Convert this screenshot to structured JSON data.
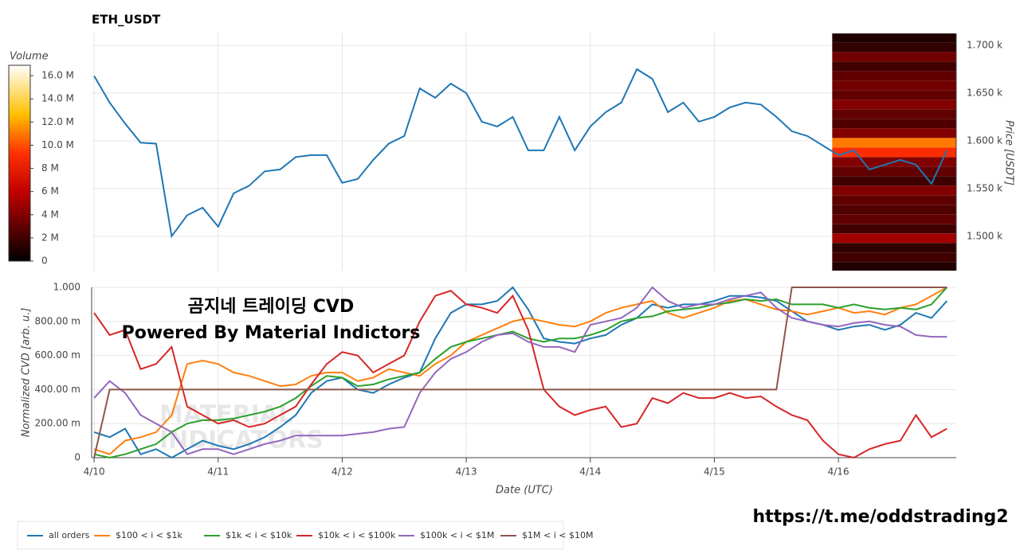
{
  "chart_data": [
    {
      "type": "line",
      "title": "ETH_USDT",
      "ylabel": "Price [USDT]",
      "xlim": [
        -0.02,
        6.95
      ],
      "ylim": [
        1464,
        1712.5
      ],
      "yticks": [
        {
          "value": 1500,
          "label": "1.500 k"
        },
        {
          "value": 1550,
          "label": "1.550 k"
        },
        {
          "value": 1600,
          "label": "1.600 k"
        },
        {
          "value": 1650,
          "label": "1.650 k"
        },
        {
          "value": 1700,
          "label": "1.700 k"
        }
      ],
      "grid": true,
      "x": [
        0,
        0.125,
        0.25,
        0.375,
        0.5,
        0.625,
        0.75,
        0.875,
        1,
        1.125,
        1.25,
        1.375,
        1.5,
        1.625,
        1.75,
        1.875,
        2,
        2.125,
        2.25,
        2.375,
        2.5,
        2.625,
        2.75,
        2.875,
        3,
        3.125,
        3.25,
        3.375,
        3.5,
        3.625,
        3.75,
        3.875,
        4,
        4.125,
        4.25,
        4.375,
        4.5,
        4.625,
        4.75,
        4.875,
        5,
        5.125,
        5.25,
        5.375,
        5.5,
        5.625,
        5.75,
        5.875,
        6,
        6.125,
        6.25,
        6.375,
        6.5,
        6.625,
        6.75,
        6.875
      ],
      "series": [
        {
          "name": "price",
          "color": "#1f77b4",
          "values": [
            1668,
            1640,
            1618,
            1598,
            1597,
            1500,
            1522,
            1530,
            1510,
            1545,
            1553,
            1568,
            1570,
            1583,
            1585,
            1585,
            1556,
            1560,
            1580,
            1597,
            1605,
            1655,
            1645,
            1660,
            1650,
            1620,
            1615,
            1625,
            1590,
            1590,
            1625,
            1590,
            1615,
            1630,
            1640,
            1675,
            1665,
            1630,
            1640,
            1620,
            1625,
            1635,
            1640,
            1638,
            1625,
            1610,
            1605,
            1595,
            1585,
            1590,
            1570,
            1575,
            1580,
            1575,
            1555,
            1590
          ]
        }
      ],
      "heatmap": {
        "xlim": [
          5.95,
          6.95
        ],
        "bins": [
          1463,
          1473,
          1483,
          1493,
          1503,
          1513,
          1523,
          1533,
          1543,
          1553,
          1563,
          1573,
          1583,
          1593,
          1603,
          1613,
          1623,
          1633,
          1643,
          1653,
          1663,
          1673,
          1683,
          1693,
          1703,
          1713
        ],
        "values": [
          1,
          2,
          1.5,
          5,
          2,
          3,
          2.5,
          3,
          4,
          2,
          3,
          4,
          9,
          11,
          4,
          2.5,
          3,
          4,
          3,
          3.5,
          3,
          2,
          3.5,
          1.5,
          1
        ],
        "colorbar": {
          "title": "Volume",
          "ylim": [
            0,
            16.9
          ],
          "yticks": [
            0,
            {
              "value": 2,
              "label": "2 M"
            },
            {
              "value": 4,
              "label": "4 M"
            },
            {
              "value": 6,
              "label": "6 M"
            },
            {
              "value": 8,
              "label": "8 M"
            },
            {
              "value": 10,
              "label": "10.0 M"
            },
            {
              "value": 12,
              "label": "12.0 M"
            },
            {
              "value": 14,
              "label": "14.0 M"
            },
            {
              "value": 16,
              "label": "16.0 M"
            }
          ]
        }
      }
    },
    {
      "type": "line",
      "ylabel": "Normalized CVD [arb. u.]",
      "xlabel": "Date (UTC)",
      "xlim": [
        -0.02,
        6.95
      ],
      "ylim": [
        0,
        1
      ],
      "xticks": [
        {
          "value": 0,
          "label": "4/10"
        },
        {
          "value": 1,
          "label": "4/11"
        },
        {
          "value": 2,
          "label": "4/12"
        },
        {
          "value": 3,
          "label": "4/13"
        },
        {
          "value": 4,
          "label": "4/14"
        },
        {
          "value": 5,
          "label": "4/15"
        },
        {
          "value": 6,
          "label": "4/16"
        }
      ],
      "yticks": [
        0,
        {
          "value": 0.2,
          "label": "200.00 m"
        },
        {
          "value": 0.4,
          "label": "400.00 m"
        },
        {
          "value": 0.6,
          "label": "600.00 m"
        },
        {
          "value": 0.8,
          "label": "800.00 m"
        },
        {
          "value": 1,
          "label": "1.000"
        }
      ],
      "grid": true,
      "annotations": [
        "곰지네 트레이딩 CVD",
        "Powered By Material Indictors"
      ],
      "watermark": [
        "MATERIAL",
        "INDICATORS"
      ],
      "x": [
        0,
        0.125,
        0.25,
        0.375,
        0.5,
        0.625,
        0.75,
        0.875,
        1,
        1.125,
        1.25,
        1.375,
        1.5,
        1.625,
        1.75,
        1.875,
        2,
        2.125,
        2.25,
        2.375,
        2.5,
        2.625,
        2.75,
        2.875,
        3,
        3.125,
        3.25,
        3.375,
        3.5,
        3.625,
        3.75,
        3.875,
        4,
        4.125,
        4.25,
        4.375,
        4.5,
        4.625,
        4.75,
        4.875,
        5,
        5.125,
        5.25,
        5.375,
        5.5,
        5.625,
        5.75,
        5.875,
        6,
        6.125,
        6.25,
        6.375,
        6.5,
        6.625,
        6.75,
        6.875
      ],
      "series": [
        {
          "name": "all orders",
          "color": "#1f77b4",
          "values": [
            0.15,
            0.12,
            0.17,
            0.02,
            0.05,
            0,
            0.05,
            0.1,
            0.07,
            0.05,
            0.08,
            0.12,
            0.18,
            0.25,
            0.38,
            0.45,
            0.47,
            0.4,
            0.38,
            0.43,
            0.47,
            0.5,
            0.7,
            0.85,
            0.9,
            0.9,
            0.92,
            1,
            0.87,
            0.7,
            0.68,
            0.67,
            0.7,
            0.72,
            0.78,
            0.82,
            0.9,
            0.88,
            0.9,
            0.9,
            0.92,
            0.95,
            0.95,
            0.94,
            0.92,
            0.86,
            0.8,
            0.78,
            0.75,
            0.77,
            0.78,
            0.75,
            0.78,
            0.85,
            0.82,
            0.92
          ]
        },
        {
          "name": "$100 < i < $1k",
          "color": "#ff7f0e",
          "values": [
            0.05,
            0.02,
            0.1,
            0.12,
            0.15,
            0.25,
            0.55,
            0.57,
            0.55,
            0.5,
            0.48,
            0.45,
            0.42,
            0.43,
            0.48,
            0.5,
            0.5,
            0.45,
            0.47,
            0.52,
            0.5,
            0.48,
            0.55,
            0.6,
            0.68,
            0.72,
            0.76,
            0.8,
            0.82,
            0.8,
            0.78,
            0.77,
            0.8,
            0.85,
            0.88,
            0.9,
            0.92,
            0.85,
            0.82,
            0.85,
            0.88,
            0.92,
            0.93,
            0.9,
            0.87,
            0.86,
            0.84,
            0.86,
            0.88,
            0.85,
            0.86,
            0.84,
            0.88,
            0.9,
            0.95,
            1
          ]
        },
        {
          "name": "$1k < i < $10k",
          "color": "#2ca02c",
          "values": [
            0.02,
            0,
            0.02,
            0.05,
            0.08,
            0.15,
            0.2,
            0.22,
            0.22,
            0.23,
            0.25,
            0.27,
            0.3,
            0.35,
            0.42,
            0.48,
            0.47,
            0.42,
            0.43,
            0.46,
            0.48,
            0.5,
            0.58,
            0.65,
            0.68,
            0.7,
            0.72,
            0.74,
            0.7,
            0.68,
            0.7,
            0.7,
            0.72,
            0.75,
            0.8,
            0.82,
            0.83,
            0.86,
            0.87,
            0.88,
            0.9,
            0.91,
            0.93,
            0.92,
            0.93,
            0.9,
            0.9,
            0.9,
            0.88,
            0.9,
            0.88,
            0.87,
            0.88,
            0.87,
            0.9,
            1
          ]
        },
        {
          "name": "$10k < i < $100k",
          "color": "#d62728",
          "values": [
            0.85,
            0.72,
            0.75,
            0.52,
            0.55,
            0.65,
            0.3,
            0.25,
            0.2,
            0.22,
            0.18,
            0.2,
            0.25,
            0.3,
            0.43,
            0.55,
            0.62,
            0.6,
            0.5,
            0.55,
            0.6,
            0.8,
            0.95,
            0.98,
            0.9,
            0.88,
            0.85,
            0.95,
            0.75,
            0.4,
            0.3,
            0.25,
            0.28,
            0.3,
            0.18,
            0.2,
            0.35,
            0.32,
            0.38,
            0.35,
            0.35,
            0.38,
            0.35,
            0.36,
            0.3,
            0.25,
            0.22,
            0.1,
            0.02,
            0,
            0.05,
            0.08,
            0.1,
            0.25,
            0.12,
            0.17
          ]
        },
        {
          "name": "$100k < i < $1M",
          "color": "#9467bd",
          "values": [
            0.35,
            0.45,
            0.38,
            0.25,
            0.2,
            0.15,
            0.02,
            0.05,
            0.05,
            0.02,
            0.05,
            0.08,
            0.1,
            0.13,
            0.13,
            0.13,
            0.13,
            0.14,
            0.15,
            0.17,
            0.18,
            0.38,
            0.5,
            0.58,
            0.62,
            0.68,
            0.72,
            0.73,
            0.68,
            0.65,
            0.65,
            0.62,
            0.78,
            0.8,
            0.82,
            0.88,
            1,
            0.92,
            0.88,
            0.9,
            0.9,
            0.93,
            0.95,
            0.97,
            0.88,
            0.82,
            0.8,
            0.78,
            0.77,
            0.79,
            0.8,
            0.78,
            0.77,
            0.72,
            0.71,
            0.71
          ]
        },
        {
          "name": "$1M < i < $10M",
          "color": "#8c564b",
          "values": [
            0,
            0.4,
            0.4,
            0.4,
            0.4,
            0.4,
            0.4,
            0.4,
            0.4,
            0.4,
            0.4,
            0.4,
            0.4,
            0.4,
            0.4,
            0.4,
            0.4,
            0.4,
            0.4,
            0.4,
            0.4,
            0.4,
            0.4,
            0.4,
            0.4,
            0.4,
            0.4,
            0.4,
            0.4,
            0.4,
            0.4,
            0.4,
            0.4,
            0.4,
            0.4,
            0.4,
            0.4,
            0.4,
            0.4,
            0.4,
            0.4,
            0.4,
            0.4,
            0.4,
            0.4,
            1,
            1,
            1,
            1,
            1,
            1,
            1,
            1,
            1,
            1,
            1
          ]
        }
      ]
    }
  ],
  "footer_link": "https://t.me/oddstrading2"
}
